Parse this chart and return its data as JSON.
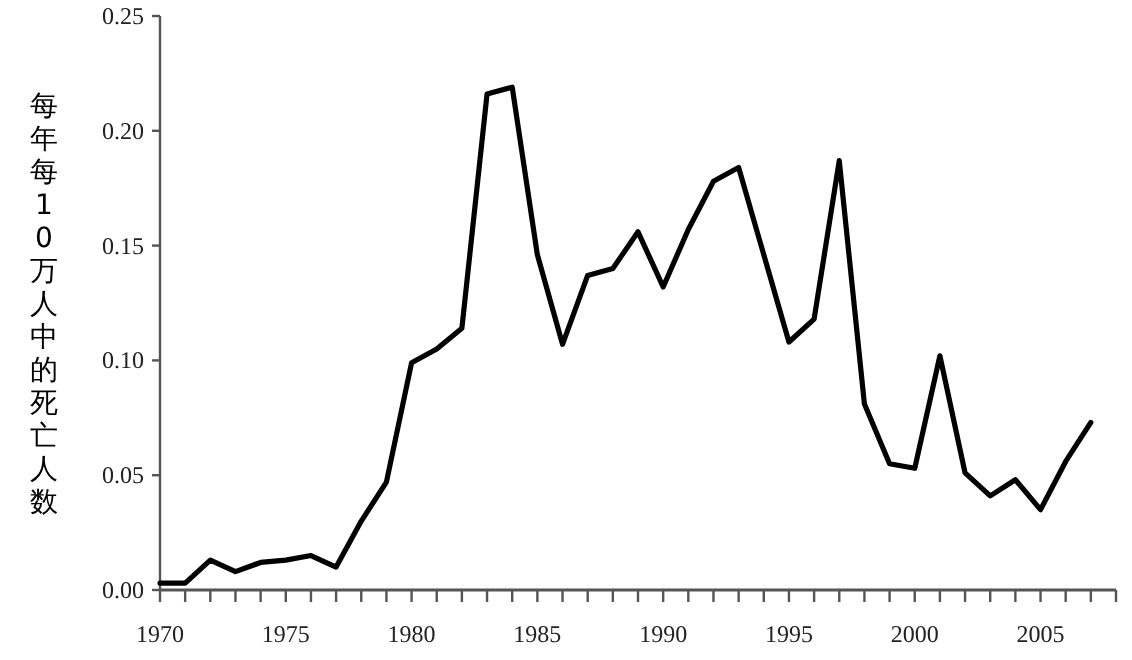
{
  "chart_data": {
    "type": "line",
    "ylabel": "每年每10万人中的死亡人数",
    "x": [
      1970,
      1971,
      1972,
      1973,
      1974,
      1975,
      1976,
      1977,
      1978,
      1979,
      1980,
      1981,
      1982,
      1983,
      1984,
      1985,
      1986,
      1987,
      1988,
      1989,
      1990,
      1991,
      1992,
      1993,
      1994,
      1995,
      1996,
      1997,
      1998,
      1999,
      2000,
      2001,
      2002,
      2003,
      2004,
      2005,
      2006,
      2007
    ],
    "series": [
      {
        "color": "#000000",
        "values": [
          0.003,
          0.003,
          0.013,
          0.008,
          0.012,
          0.013,
          0.015,
          0.01,
          0.03,
          0.047,
          0.099,
          0.105,
          0.114,
          0.216,
          0.219,
          0.146,
          0.107,
          0.137,
          0.14,
          0.156,
          0.132,
          0.157,
          0.178,
          0.184,
          0.146,
          0.108,
          0.118,
          0.187,
          0.081,
          0.055,
          0.053,
          0.102,
          0.051,
          0.041,
          0.048,
          0.035,
          0.056,
          0.073
        ]
      }
    ],
    "xlim": [
      1970,
      2008
    ],
    "xticks": [
      1970,
      {
        "value": 1971,
        "label": null
      },
      {
        "value": 1972,
        "label": null
      },
      {
        "value": 1973,
        "label": null
      },
      {
        "value": 1974,
        "label": null
      },
      1975,
      {
        "value": 1976,
        "label": null
      },
      {
        "value": 1977,
        "label": null
      },
      {
        "value": 1978,
        "label": null
      },
      {
        "value": 1979,
        "label": null
      },
      1980,
      {
        "value": 1981,
        "label": null
      },
      {
        "value": 1982,
        "label": null
      },
      {
        "value": 1983,
        "label": null
      },
      {
        "value": 1984,
        "label": null
      },
      1985,
      {
        "value": 1986,
        "label": null
      },
      {
        "value": 1987,
        "label": null
      },
      {
        "value": 1988,
        "label": null
      },
      {
        "value": 1989,
        "label": null
      },
      1990,
      {
        "value": 1991,
        "label": null
      },
      {
        "value": 1992,
        "label": null
      },
      {
        "value": 1993,
        "label": null
      },
      {
        "value": 1994,
        "label": null
      },
      1995,
      {
        "value": 1996,
        "label": null
      },
      {
        "value": 1997,
        "label": null
      },
      {
        "value": 1998,
        "label": null
      },
      {
        "value": 1999,
        "label": null
      },
      2000,
      {
        "value": 2001,
        "label": null
      },
      {
        "value": 2002,
        "label": null
      },
      {
        "value": 2003,
        "label": null
      },
      {
        "value": 2004,
        "label": null
      },
      2005,
      {
        "value": 2006,
        "label": null
      },
      {
        "value": 2007,
        "label": null
      },
      {
        "value": 2008,
        "label": null
      }
    ],
    "ylim": [
      0,
      0.25
    ],
    "yticks": [
      {
        "value": 0,
        "label": "0.00"
      },
      {
        "value": 0.05,
        "label": "0.05"
      },
      {
        "value": 0.1,
        "label": "0.10"
      },
      {
        "value": 0.15,
        "label": "0.15"
      },
      {
        "value": 0.2,
        "label": "0.20"
      },
      {
        "value": 0.25,
        "label": "0.25"
      }
    ],
    "grid": false,
    "marker": "none",
    "line_style": "solid"
  }
}
